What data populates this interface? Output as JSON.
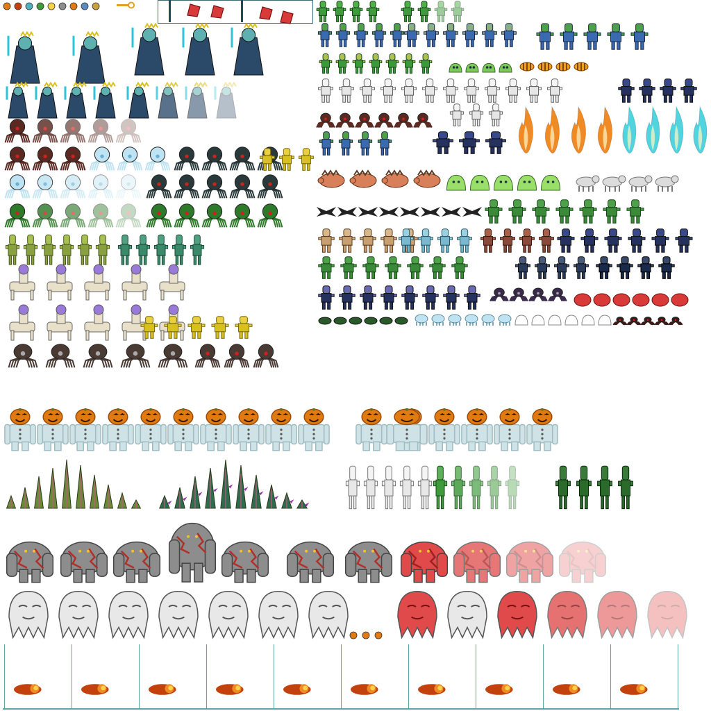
{
  "sheet": {
    "kind": "sprite-sheet",
    "background": "#ffffff"
  },
  "palette": {
    "pumpkin": "#e07a12",
    "pumpkin_dark": "#9c4a08",
    "suit": "#cfe3e6",
    "suit_shadow": "#9fbcc2",
    "golem_stone": "#8d8d8d",
    "golem_crack": "#b0302a",
    "ghost_white": "#e8e8e8",
    "ghost_red": "#e04a4a",
    "fireball_core": "#f7d24a",
    "fireball_outer": "#c2410c",
    "spike_green": "#6a8a3a",
    "spike_teal": "#2f6b4f",
    "spike_thorn": "#9b2fb0",
    "zombie_green": "#3e9a3a",
    "skeleton_bone": "#e6e6e6",
    "spider_dark": "#5a2a22",
    "spider_ice": "#bfe3f2",
    "spider_green": "#2f7a2a",
    "flame_orange": "#f08a24",
    "flame_cyan": "#4fd4e0",
    "slime_green": "#7bc95a",
    "navy_hood": "#25325f",
    "strip_line": "#5ea6a6"
  },
  "groups": [
    {
      "name": "reaper-frames"
    },
    {
      "name": "spider-frames"
    },
    {
      "name": "centaur-frames"
    },
    {
      "name": "zombie-frames"
    },
    {
      "name": "skeleton-frames"
    },
    {
      "name": "flame-frames"
    },
    {
      "name": "slime-frames"
    },
    {
      "name": "pumpkin-head-frames"
    },
    {
      "name": "spike-frames"
    },
    {
      "name": "golem-frames"
    },
    {
      "name": "ghost-frames"
    },
    {
      "name": "fireball-frames"
    }
  ]
}
